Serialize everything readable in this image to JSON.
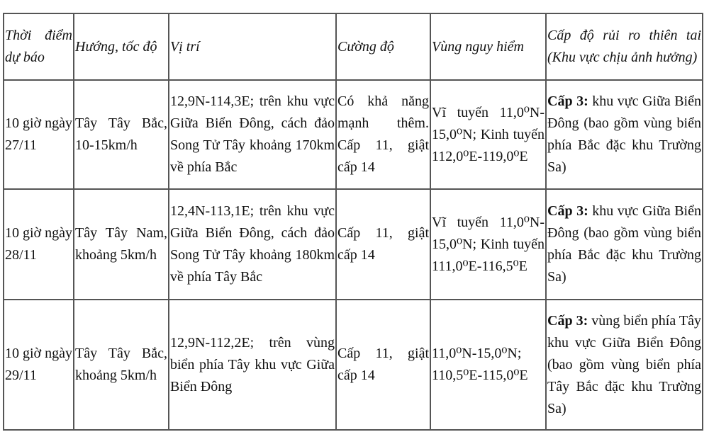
{
  "headers": [
    "Thời điểm dự báo",
    "Hướng, tốc độ",
    "Vị trí",
    "Cường độ",
    "Vùng nguy hiểm",
    "Cấp độ rủi ro thiên tai (Khu vực chịu ảnh hưởng)"
  ],
  "rows": [
    {
      "time": "10 giờ ngày 27/11",
      "direction": "Tây Tây Bắc, 10-15km/h",
      "position": "12,9N-114,3E; trên khu vực Giữa Biển Đông, cách đảo Song Tử Tây khoảng 170km về phía Bắc",
      "intensity": "Có khả năng mạnh thêm. Cấp 11, giật cấp 14",
      "danger_zone": "Vĩ tuyến 11,0⁰N-15,0⁰N; Kinh tuyến 112,0⁰E-119,0⁰E",
      "risk_label": "Cấp 3:",
      "risk_text": " khu vực Giữa Biển Đông (bao gồm vùng biển phía Bắc đặc khu Trường Sa)"
    },
    {
      "time": "10 giờ ngày 28/11",
      "direction": "Tây Tây Nam, khoảng 5km/h",
      "position": "12,4N-113,1E; trên khu vực Giữa Biển Đông, cách đảo Song Tử Tây khoảng 180km về phía Tây Bắc",
      "intensity": "Cấp 11, giật cấp 14",
      "danger_zone": "Vĩ tuyến 11,0⁰N-15,0⁰N; Kinh tuyến 111,0⁰E-116,5⁰E",
      "risk_label": "Cấp 3:",
      "risk_text": " khu vực Giữa Biển Đông (bao gồm vùng biển phía Bắc đặc khu Trường Sa)"
    },
    {
      "time": "10 giờ ngày 29/11",
      "direction": "Tây Tây Bắc, khoảng 5km/h",
      "position": "12,9N-112,2E; trên vùng biển phía Tây khu vực Giữa Biển Đông",
      "intensity": "Cấp 11, giật cấp 14",
      "danger_zone": "11,0⁰N-15,0⁰N; 110,5⁰E-115,0⁰E",
      "risk_label": "Cấp 3:",
      "risk_text": " vùng biển phía Tây khu vực Giữa Biển Đông (bao gồm vùng biển phía Tây Bắc đặc khu Trường Sa)"
    }
  ]
}
